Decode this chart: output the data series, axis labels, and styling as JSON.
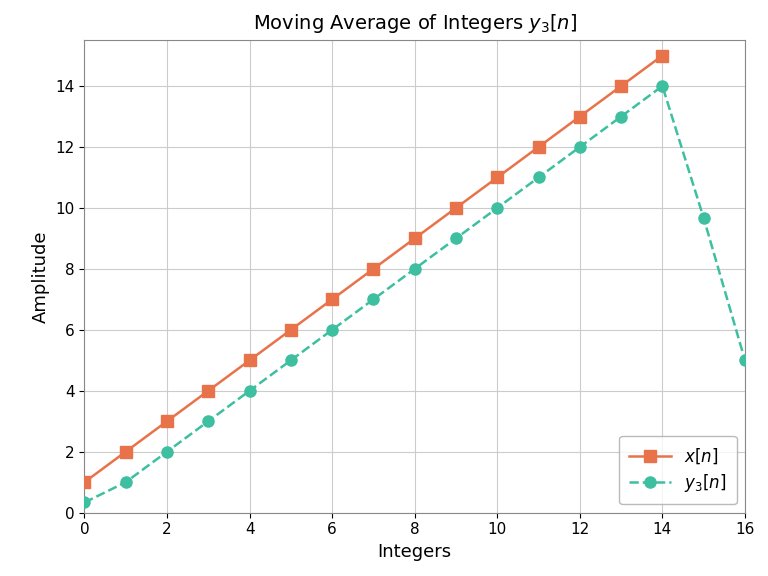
{
  "x_n_indices": [
    0,
    1,
    2,
    3,
    4,
    5,
    6,
    7,
    8,
    9,
    10,
    11,
    12,
    13,
    14
  ],
  "x_n_values": [
    1,
    2,
    3,
    4,
    5,
    6,
    7,
    8,
    9,
    10,
    11,
    12,
    13,
    14,
    15
  ],
  "y3_n_indices": [
    0,
    1,
    2,
    3,
    4,
    5,
    6,
    7,
    8,
    9,
    10,
    11,
    12,
    13,
    14,
    15,
    16
  ],
  "y3_n_values": [
    0.3333,
    1.0,
    2.0,
    3.0,
    4.0,
    5.0,
    6.0,
    7.0,
    8.0,
    9.0,
    10.0,
    11.0,
    12.0,
    13.0,
    14.0,
    9.6667,
    5.0
  ],
  "x_color": "#E8734A",
  "y3_color": "#3DBFA0",
  "title": "Moving Average of Integers $y_3[n]$",
  "xlabel": "Integers",
  "ylabel": "Amplitude",
  "xlim": [
    0,
    16
  ],
  "ylim": [
    0,
    15.5
  ],
  "xticks": [
    0,
    2,
    4,
    6,
    8,
    10,
    12,
    14,
    16
  ],
  "yticks": [
    0,
    2,
    4,
    6,
    8,
    10,
    12,
    14
  ],
  "legend_x_label": "$x[n]$",
  "legend_y3_label": "$y_3[n]$",
  "background_color": "#ffffff",
  "grid_color": "#cccccc",
  "title_fontsize": 14,
  "label_fontsize": 13,
  "tick_fontsize": 11,
  "legend_fontsize": 12,
  "linewidth": 1.8,
  "markersize": 8
}
